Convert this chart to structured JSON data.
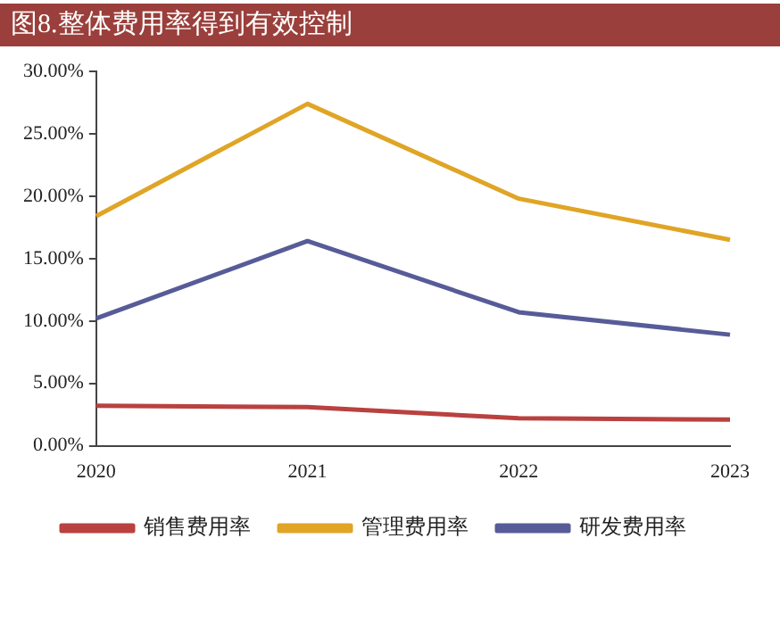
{
  "chart_data": {
    "type": "line",
    "title": "图8.整体费用率得到有效控制",
    "categories": [
      "2020",
      "2021",
      "2022",
      "2023"
    ],
    "series": [
      {
        "name": "销售费用率",
        "color": "#b9413f",
        "values": [
          3.2,
          3.1,
          2.2,
          2.1
        ]
      },
      {
        "name": "管理费用率",
        "color": "#e0a526",
        "values": [
          18.4,
          27.4,
          19.8,
          16.5
        ]
      },
      {
        "name": "研发费用率",
        "color": "#575c98",
        "values": [
          10.2,
          16.4,
          10.7,
          8.9
        ]
      }
    ],
    "ylim": [
      0,
      30
    ],
    "yticks": [
      {
        "value": 0,
        "label": "0.00%"
      },
      {
        "value": 5,
        "label": "5.00%"
      },
      {
        "value": 10,
        "label": "10.00%"
      },
      {
        "value": 15,
        "label": "15.00%"
      },
      {
        "value": 20,
        "label": "20.00%"
      },
      {
        "value": 25,
        "label": "25.00%"
      },
      {
        "value": 30,
        "label": "30.00%"
      }
    ],
    "grid": false,
    "legend": "bottom",
    "marker": "none",
    "line_style": "solid"
  }
}
